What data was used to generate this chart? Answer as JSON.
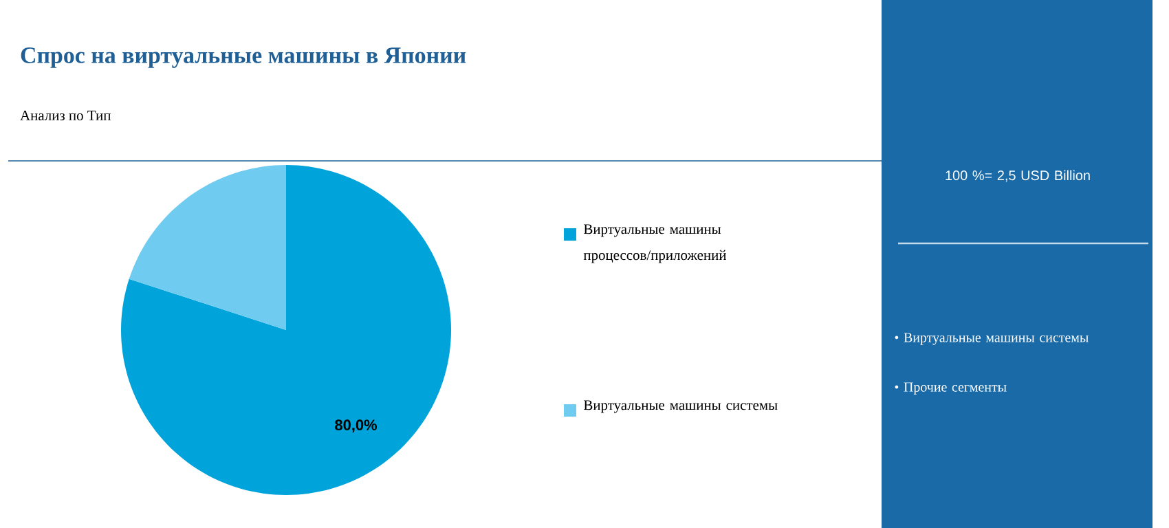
{
  "chart_data": {
    "type": "pie",
    "title": "Спрос на виртуальные машины в Японии",
    "subtitle": "Анализ по Тип",
    "categories": [
      "Виртуальные машины процессов/приложений",
      "Виртуальные машины системы"
    ],
    "values": [
      80,
      20
    ],
    "colors": [
      "#00a3da",
      "#6fcbef"
    ],
    "value_labels": [
      "80,0%",
      null
    ],
    "legend": "right",
    "annotations": [
      "100 %= 2,5 USD Billion",
      "• Виртуальные машины системы",
      "• Прочие сегменты"
    ]
  }
}
